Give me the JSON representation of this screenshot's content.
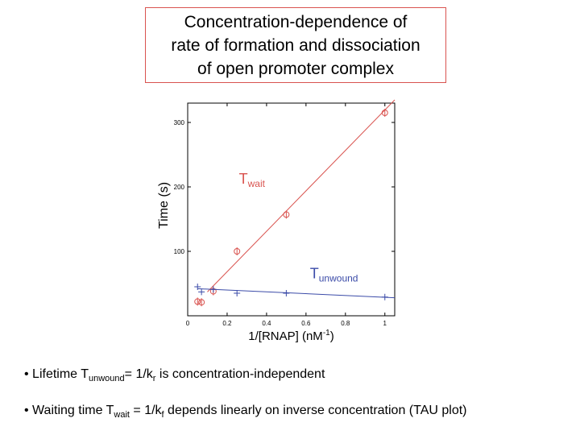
{
  "slide": {
    "title_lines": [
      "Concentration-dependence of",
      "rate of formation and dissociation",
      "of open promoter complex"
    ],
    "bullets": [
      {
        "pre": "• Lifetime T",
        "sub": "unwound",
        "mid": "= 1/k",
        "sub2": "r",
        "post": " is concentration-independent"
      },
      {
        "pre": "• Waiting time T",
        "sub": "wait",
        "mid": " = 1/k",
        "sub2": "f",
        "post": " depends linearly on inverse concentration (TAU plot)"
      }
    ]
  },
  "chart_data": {
    "type": "scatter",
    "xlabel": "1/[RNAP] (nM",
    "xlabel_sup": "-1",
    "xlabel_end": ")",
    "ylabel": "Time (s)",
    "xlim": [
      0,
      1.05
    ],
    "ylim": [
      0,
      330
    ],
    "x_ticks": [
      0,
      0.2,
      0.4,
      0.6,
      0.8,
      1
    ],
    "x_tick_labels": [
      "0",
      "0.2",
      "0.4",
      "0.6",
      "0.8",
      "1"
    ],
    "y_ticks": [
      100,
      200,
      300
    ],
    "y_tick_labels": [
      "100",
      "200",
      "300"
    ],
    "colors": {
      "wait": "#d9534f",
      "unwound": "#3b4ba8"
    },
    "series": [
      {
        "label_main": "T",
        "label_sub": "wait",
        "label_at": [
          0.26,
          205
        ],
        "marker": "circle",
        "points": [
          [
            0.05,
            22
          ],
          [
            0.07,
            21
          ],
          [
            0.13,
            38
          ],
          [
            0.25,
            100
          ],
          [
            0.5,
            157
          ],
          [
            1.0,
            315
          ]
        ],
        "fit": [
          [
            0.1,
            37
          ],
          [
            1.05,
            335
          ]
        ]
      },
      {
        "label_main": "T",
        "label_sub": "unwound",
        "label_at": [
          0.62,
          58
        ],
        "marker": "plus",
        "points": [
          [
            0.05,
            45
          ],
          [
            0.07,
            37
          ],
          [
            0.13,
            41
          ],
          [
            0.25,
            35
          ],
          [
            0.5,
            35
          ],
          [
            1.0,
            29
          ]
        ],
        "fit": [
          [
            0.05,
            42
          ],
          [
            1.05,
            28
          ]
        ]
      }
    ]
  }
}
